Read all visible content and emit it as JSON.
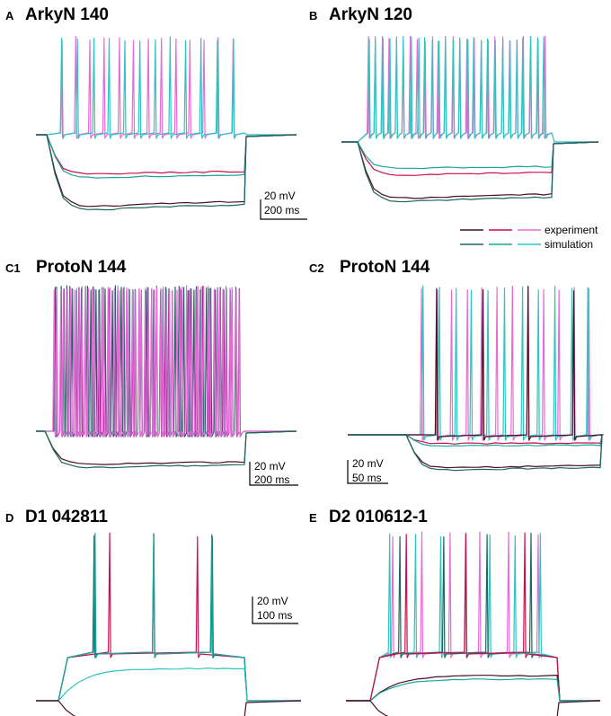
{
  "colors": {
    "exp_dark": "#4a0f22",
    "exp_mid": "#c8104d",
    "exp_light": "#e86ad8",
    "sim_dark": "#1b6660",
    "sim_mid": "#1aa59b",
    "sim_light": "#2ec4c0"
  },
  "legend": {
    "experiment": "experiment",
    "simulation": "simulation"
  },
  "chart_data": [
    {
      "type": "line",
      "panel": "A",
      "title": "ArkyN 140",
      "scalebar": {
        "voltage": "20 mV",
        "time": "200 ms"
      },
      "series": [
        {
          "group": "experiment",
          "color": "exp_light",
          "mode": "spiking",
          "spikes": 13
        },
        {
          "group": "simulation",
          "color": "sim_light",
          "mode": "spiking",
          "spikes": 12
        },
        {
          "group": "experiment",
          "color": "exp_mid",
          "mode": "hyper",
          "level": -0.55
        },
        {
          "group": "simulation",
          "color": "sim_mid",
          "mode": "hyper",
          "level": -0.6
        },
        {
          "group": "experiment",
          "color": "exp_dark",
          "mode": "hyper",
          "level": -1.0
        },
        {
          "group": "simulation",
          "color": "sim_dark",
          "mode": "hyper",
          "level": -1.05
        }
      ]
    },
    {
      "type": "line",
      "panel": "B",
      "title": "ArkyN 120",
      "scalebar": {
        "voltage": "",
        "time": ""
      },
      "series": [
        {
          "group": "experiment",
          "color": "exp_light",
          "mode": "spiking",
          "spikes": 26
        },
        {
          "group": "simulation",
          "color": "sim_light",
          "mode": "spiking",
          "spikes": 26
        },
        {
          "group": "experiment",
          "color": "exp_mid",
          "mode": "hyper",
          "level": -0.5
        },
        {
          "group": "simulation",
          "color": "sim_mid",
          "mode": "hyper",
          "level": -0.4
        },
        {
          "group": "experiment",
          "color": "exp_dark",
          "mode": "hyper",
          "level": -0.85
        },
        {
          "group": "simulation",
          "color": "sim_dark",
          "mode": "hyper",
          "level": -0.9
        }
      ]
    },
    {
      "type": "line",
      "panel": "C1",
      "title": "ProtoN 144",
      "scalebar": {
        "voltage": "20 mV",
        "time": "200 ms"
      },
      "series": [
        {
          "group": "simulation",
          "color": "sim_dark",
          "mode": "spiking",
          "spikes": 62
        },
        {
          "group": "experiment",
          "color": "exp_light",
          "mode": "spiking",
          "spikes": 60
        },
        {
          "group": "experiment",
          "color": "exp_dark",
          "mode": "hyper",
          "level": -0.3
        },
        {
          "group": "simulation",
          "color": "sim_dark",
          "mode": "hyper",
          "level": -0.33
        }
      ]
    },
    {
      "type": "line",
      "panel": "C2",
      "title": "ProtoN 144",
      "scalebar": {
        "voltage": "20 mV",
        "time": "50 ms"
      },
      "series": [
        {
          "group": "experiment",
          "color": "exp_light",
          "mode": "spiking",
          "spikes": 12
        },
        {
          "group": "simulation",
          "color": "sim_light",
          "mode": "spiking",
          "spikes": 11
        },
        {
          "group": "experiment",
          "color": "exp_dark",
          "mode": "spiking",
          "spikes": 4
        },
        {
          "group": "experiment",
          "color": "exp_mid",
          "mode": "hyper",
          "level": -0.08
        },
        {
          "group": "simulation",
          "color": "sim_mid",
          "mode": "hyper",
          "level": -0.1
        },
        {
          "group": "experiment",
          "color": "exp_dark",
          "mode": "hyper",
          "level": -0.3
        },
        {
          "group": "simulation",
          "color": "sim_dark",
          "mode": "hyper",
          "level": -0.32
        }
      ]
    },
    {
      "type": "line",
      "panel": "D",
      "title": "D1 042811",
      "scalebar": {
        "voltage": "20 mV",
        "time": "100 ms"
      },
      "series": [
        {
          "group": "experiment",
          "color": "exp_light",
          "mode": "spiking",
          "spikes": 3
        },
        {
          "group": "experiment",
          "color": "exp_mid",
          "mode": "spiking",
          "spikes": 2
        },
        {
          "group": "simulation",
          "color": "sim_dark",
          "mode": "spiking",
          "spikes": 3
        },
        {
          "group": "simulation",
          "color": "sim_mid",
          "mode": "spiking",
          "spikes": 3
        },
        {
          "group": "simulation",
          "color": "sim_light",
          "mode": "sub",
          "level": 0.45
        },
        {
          "group": "experiment",
          "color": "exp_dark",
          "mode": "hyper",
          "level": -0.2
        }
      ]
    },
    {
      "type": "line",
      "panel": "E",
      "title": "D2 010612-1",
      "scalebar": {
        "voltage": "",
        "time": ""
      },
      "series": [
        {
          "group": "experiment",
          "color": "exp_light",
          "mode": "spiking",
          "spikes": 6
        },
        {
          "group": "simulation",
          "color": "sim_light",
          "mode": "spiking",
          "spikes": 7
        },
        {
          "group": "simulation",
          "color": "sim_dark",
          "mode": "spiking",
          "spikes": 4
        },
        {
          "group": "experiment",
          "color": "exp_mid",
          "mode": "spiking",
          "spikes": 3
        },
        {
          "group": "experiment",
          "color": "exp_dark",
          "mode": "sub",
          "level": 0.35
        },
        {
          "group": "simulation",
          "color": "sim_mid",
          "mode": "sub",
          "level": 0.3
        },
        {
          "group": "experiment",
          "color": "exp_dark",
          "mode": "hyper",
          "level": -0.2
        }
      ]
    }
  ]
}
